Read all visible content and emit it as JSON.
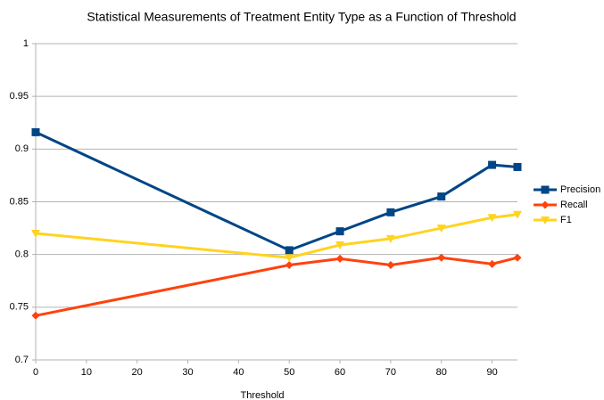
{
  "chart_data": {
    "type": "line",
    "title": "Statistical Measurements of Treatment Entity Type as a Function of Threshold",
    "x_label": "Threshold",
    "x": [
      0,
      50,
      60,
      70,
      80,
      90,
      95
    ],
    "series": [
      {
        "name": "Precision",
        "color": "#004586",
        "marker": "square",
        "values": [
          0.916,
          0.804,
          0.822,
          0.84,
          0.855,
          0.885,
          0.883
        ]
      },
      {
        "name": "Recall",
        "color": "#ff420e",
        "marker": "diamond",
        "values": [
          0.742,
          0.79,
          0.796,
          0.79,
          0.797,
          0.791,
          0.797
        ]
      },
      {
        "name": "F1",
        "color": "#ffd320",
        "marker": "triangle-down",
        "values": [
          0.82,
          0.797,
          0.809,
          0.815,
          0.825,
          0.835,
          0.838
        ]
      }
    ],
    "xlim": [
      0,
      95
    ],
    "xticks": [
      0,
      10,
      20,
      30,
      40,
      50,
      60,
      70,
      80,
      90
    ],
    "ylim": [
      0.7,
      1
    ],
    "yticks": [
      0.7,
      0.75,
      0.8,
      0.85,
      0.9,
      0.95,
      1
    ],
    "grid": true,
    "legend": "right"
  }
}
